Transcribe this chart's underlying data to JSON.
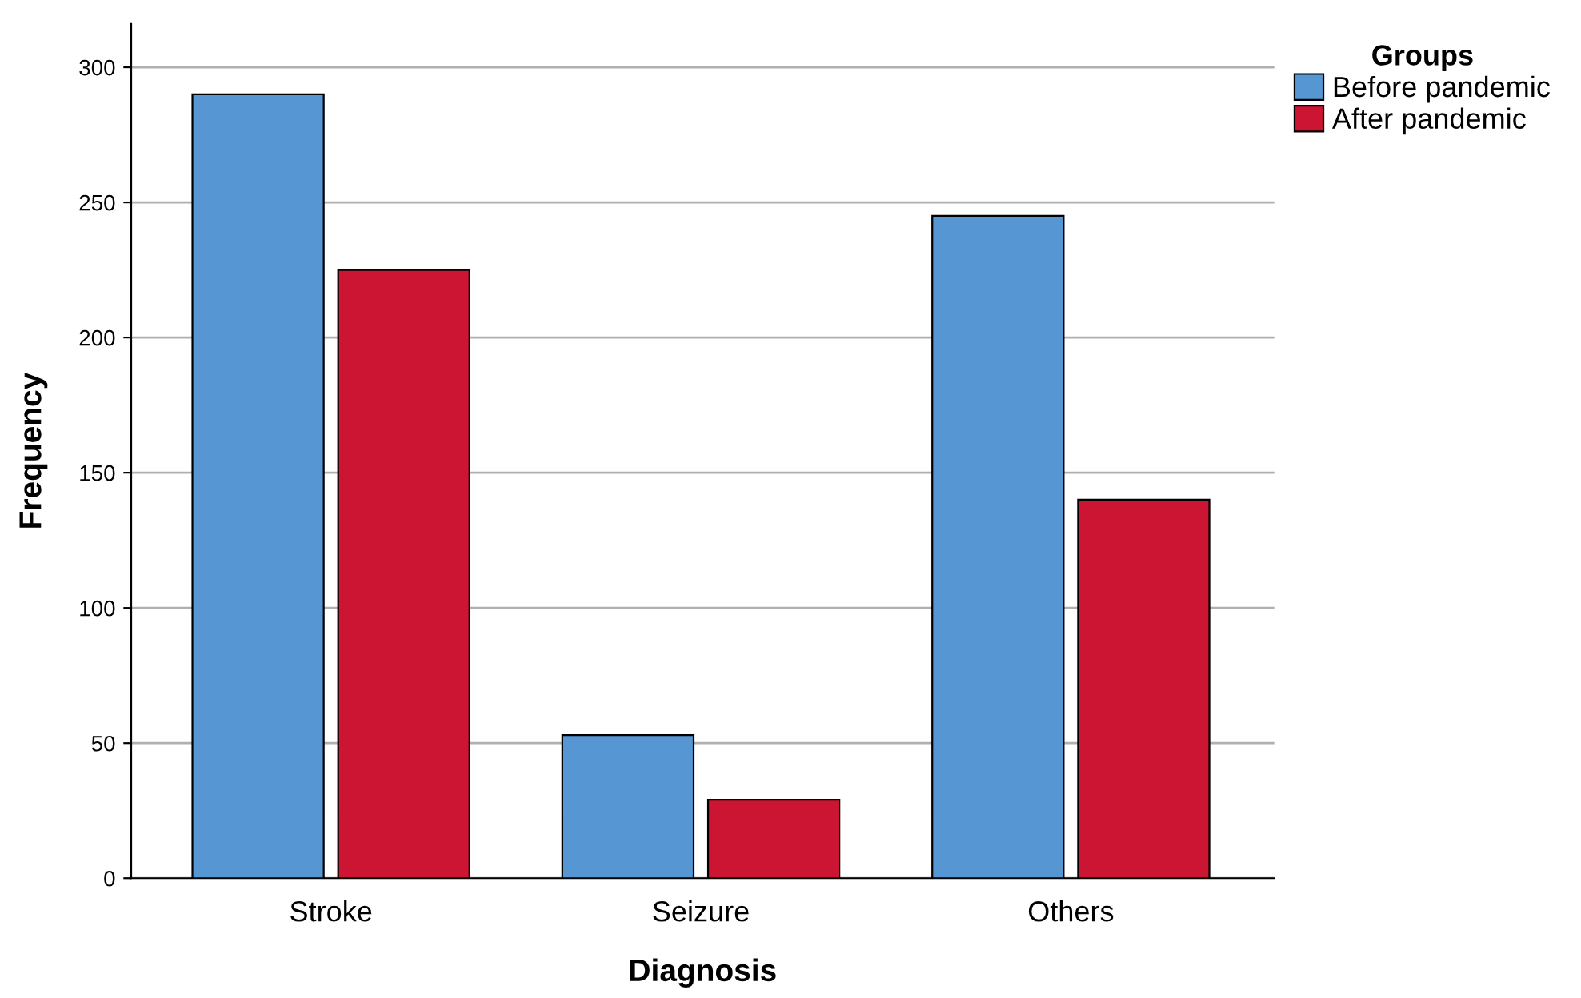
{
  "chart_data": {
    "type": "bar",
    "xlabel": "Diagnosis",
    "ylabel": "Frequency",
    "legend_title": "Groups",
    "categories": [
      "Stroke",
      "Seizure",
      "Others"
    ],
    "series": [
      {
        "name": "Before pandemic",
        "color": "#5596d3",
        "values": [
          290,
          53,
          245
        ]
      },
      {
        "name": "After pandemic",
        "color": "#cc1433",
        "values": [
          225,
          29,
          140
        ]
      }
    ],
    "ylim": [
      0,
      316
    ],
    "yticks": [
      0,
      50,
      100,
      150,
      200,
      250,
      300
    ],
    "grid": "y",
    "legend": "top right"
  }
}
